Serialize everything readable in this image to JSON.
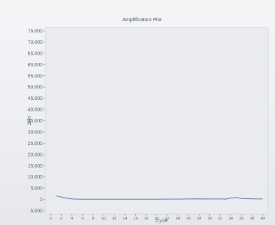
{
  "chart_data": {
    "type": "line",
    "title": "Amplification Plot",
    "xlabel": "Cycle",
    "ylabel": "ΔRn",
    "xlim": [
      0,
      40
    ],
    "ylim": [
      -5000,
      75000
    ],
    "x_ticks": [
      0,
      2,
      4,
      6,
      8,
      10,
      12,
      14,
      16,
      18,
      20,
      22,
      24,
      26,
      28,
      30,
      32,
      34,
      36,
      38,
      40
    ],
    "y_ticks": [
      -5000,
      0,
      5000,
      10000,
      15000,
      20000,
      25000,
      30000,
      35000,
      40000,
      45000,
      50000,
      55000,
      60000,
      65000,
      70000,
      75000
    ],
    "y_tick_labels": [
      "-5,000",
      "0",
      "5,000",
      "10,000",
      "15,000",
      "20,000",
      "25,000",
      "30,000",
      "35,000",
      "40,000",
      "45,000",
      "50,000",
      "55,000",
      "60,000",
      "65,000",
      "70,000",
      "75,000"
    ],
    "grid": false,
    "series": [
      {
        "color": "#5b6fb0",
        "x": [
          1,
          2,
          3,
          4,
          5,
          6,
          8,
          10,
          12,
          14,
          16,
          18,
          20,
          22,
          24,
          26,
          28,
          30,
          32,
          33,
          34,
          35,
          36,
          38,
          40
        ],
        "y": [
          1600,
          1000,
          500,
          200,
          150,
          100,
          100,
          100,
          100,
          100,
          100,
          100,
          100,
          150,
          150,
          200,
          250,
          200,
          200,
          150,
          600,
          900,
          400,
          250,
          200
        ]
      }
    ]
  }
}
